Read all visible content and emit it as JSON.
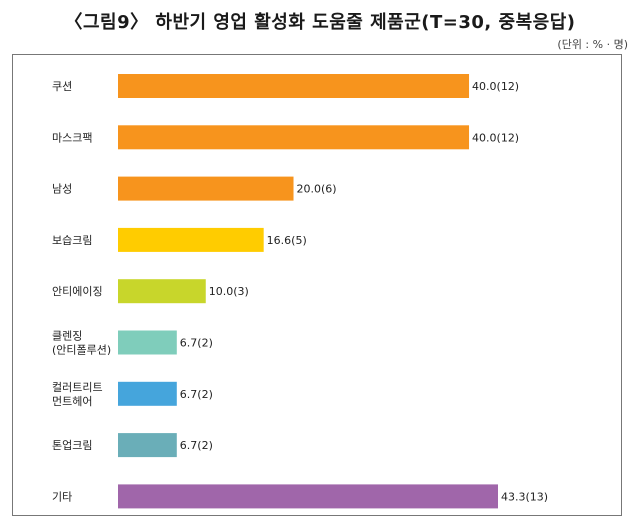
{
  "title": "〈그림9〉 하반기 영업 활성화 도움줄 제품군(T=30, 중복응답)",
  "unit": "(단위 : % · 명)",
  "chart_data": {
    "type": "bar",
    "orientation": "horizontal",
    "title": "〈그림9〉 하반기 영업 활성화 도움줄 제품군(T=30, 중복응답)",
    "unit": "(단위 : % · 명)",
    "categories": [
      [
        "쿠션"
      ],
      [
        "마스크팩"
      ],
      [
        "남성"
      ],
      [
        "보습크림"
      ],
      [
        "안티에이징"
      ],
      [
        "클렌징",
        "(안티폴루션)"
      ],
      [
        "컬러트리트",
        "먼트헤어"
      ],
      [
        "톤업크림"
      ],
      [
        "기타"
      ]
    ],
    "values": [
      40.0,
      40.0,
      20.0,
      16.6,
      10.0,
      6.7,
      6.7,
      6.7,
      43.3
    ],
    "counts": [
      12,
      12,
      6,
      5,
      3,
      2,
      2,
      2,
      13
    ],
    "labels": [
      "40.0(12)",
      "40.0(12)",
      "20.0(6)",
      "16.6(5)",
      "10.0(3)",
      "6.7(2)",
      "6.7(2)",
      "6.7(2)",
      "43.3(13)"
    ],
    "colors": [
      "#F7941D",
      "#F7941D",
      "#F7941D",
      "#FFCC00",
      "#C8D62B",
      "#7FCDBB",
      "#45A5DC",
      "#6AAEB8",
      "#A066AA"
    ],
    "xlim": [
      0,
      43.3
    ],
    "grid": false,
    "legend": "none"
  }
}
